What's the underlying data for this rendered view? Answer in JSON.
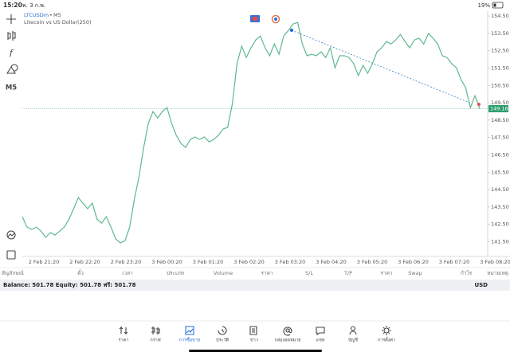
{
  "status_bar": {
    "time": "15:20",
    "date": "พ. 3 ก.พ.",
    "battery": "19%"
  },
  "chart": {
    "symbol": "LTCUSDm",
    "period": "M5",
    "description": "Litecoin vs US Dollar(250)",
    "toolbar_period": "M5",
    "values": [
      142.94,
      142.34,
      142.21,
      142.34,
      142.11,
      141.75,
      142.02,
      141.89,
      142.11,
      142.34,
      142.8,
      143.4,
      144.04,
      143.72,
      143.4,
      143.72,
      142.8,
      142.57,
      142.94,
      142.34,
      141.66,
      141.43,
      141.56,
      142.34,
      143.95,
      145.23,
      146.93,
      148.31,
      149.0,
      148.63,
      149.0,
      149.22,
      148.31,
      147.62,
      147.16,
      146.93,
      147.39,
      147.53,
      147.39,
      147.53,
      147.25,
      147.39,
      147.62,
      147.99,
      148.08,
      149.45,
      151.75,
      152.76,
      152.11,
      152.67,
      153.12,
      153.35,
      152.67,
      152.21,
      152.89,
      152.3,
      153.35,
      153.67,
      154.04,
      154.13,
      152.89,
      152.21,
      152.3,
      152.21,
      152.44,
      152.11,
      152.67,
      151.52,
      152.21,
      152.21,
      152.11,
      151.75,
      151.06,
      151.66,
      151.2,
      151.75,
      152.44,
      152.67,
      153.03,
      152.89,
      153.12,
      153.44,
      153.03,
      152.67,
      153.12,
      153.22,
      152.89,
      153.49,
      153.22,
      152.89,
      152.21,
      152.11,
      151.75,
      151.52,
      150.83,
      150.37,
      149.22,
      149.91,
      149.16
    ],
    "color": "#5fb88f",
    "ylim": [
      140.65,
      154.78
    ],
    "yticks": [
      {
        "value": 154.5,
        "label": "154.50"
      },
      {
        "value": 153.5,
        "label": "153.50"
      },
      {
        "value": 152.5,
        "label": "152.50"
      },
      {
        "value": 151.5,
        "label": "151.50"
      },
      {
        "value": 150.5,
        "label": "150.50"
      },
      {
        "value": 149.5,
        "label": "149.50"
      },
      {
        "value": 148.5,
        "label": "148.50"
      },
      {
        "value": 147.5,
        "label": "147.50"
      },
      {
        "value": 146.5,
        "label": "146.50"
      },
      {
        "value": 145.5,
        "label": "145.50"
      },
      {
        "value": 144.5,
        "label": "144.50"
      },
      {
        "value": 143.5,
        "label": "143.50"
      },
      {
        "value": 142.5,
        "label": "142.50"
      },
      {
        "value": 141.5,
        "label": "141.50"
      }
    ],
    "x_labels": [
      "2 Feb 21:20",
      "2 Feb 22:20",
      "2 Feb 23:20",
      "3 Feb 00:20",
      "3 Feb 01:20",
      "3 Feb 02:20",
      "3 Feb 03:20",
      "3 Feb 04:20",
      "3 Feb 05:20",
      "3 Feb 06:20",
      "3 Feb 07:20",
      "3 Feb 08:20"
    ],
    "current_price": 149.16
  },
  "table": {
    "headers": [
      "สัญลักษณ์",
      "ตั๋ว",
      "เวลา",
      "ประเภท",
      "Volume",
      "ราคา",
      "S/L",
      "T/P",
      "ราคา",
      "Swap",
      "กำไร",
      "หมายเหตุ"
    ]
  },
  "account": {
    "summary": "Balance: 501.78 Equity: 501.78 ฟรี: 501.78",
    "currency": "USD"
  },
  "tabs": [
    "ราคา",
    "กราฟ",
    "การซื้อขาย",
    "ประวัติ",
    "ข่าว",
    "กล่องจดหมาย",
    "แชท",
    "บัญชี",
    "การตั้งค่า"
  ]
}
